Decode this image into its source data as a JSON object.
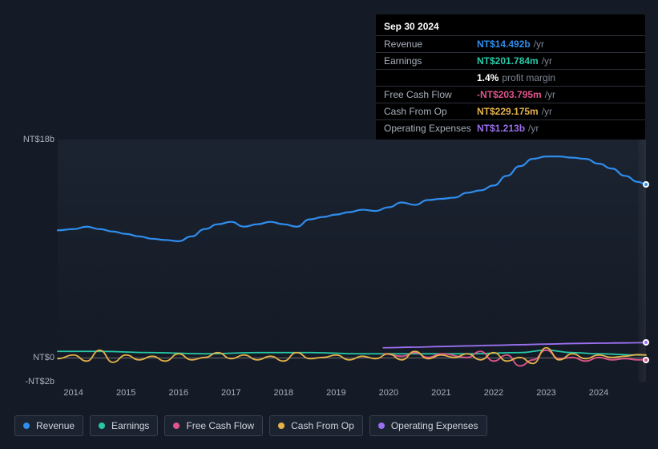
{
  "tooltip": {
    "date": "Sep 30 2024",
    "rows": [
      {
        "key": "revenue",
        "label": "Revenue",
        "value": "NT$14.492b",
        "unit": "/yr",
        "color": "#2f8ded"
      },
      {
        "key": "earnings",
        "label": "Earnings",
        "value": "NT$201.784m",
        "unit": "/yr",
        "color": "#27c8a7"
      },
      {
        "key": "margin",
        "label": "",
        "pct": "1.4%",
        "pm": "profit margin"
      },
      {
        "key": "fcf",
        "label": "Free Cash Flow",
        "value": "-NT$203.795m",
        "unit": "/yr",
        "color": "#e1548b"
      },
      {
        "key": "cfo",
        "label": "Cash From Op",
        "value": "NT$229.175m",
        "unit": "/yr",
        "color": "#e6b24a"
      },
      {
        "key": "opex",
        "label": "Operating Expenses",
        "value": "NT$1.213b",
        "unit": "/yr",
        "color": "#9a6ff0"
      }
    ]
  },
  "chart": {
    "type": "line",
    "background_color": "#151b26",
    "plot_bg_gradient": [
      "#202a3a",
      "#182030"
    ],
    "grid_color": "#2b3443",
    "text_color": "#a9b0bb",
    "zero_line_color": "rgba(255,255,255,0.35)",
    "label_fontsize": 11,
    "x": {
      "min": 2013.7,
      "max": 2024.9,
      "ticks": [
        2014,
        2015,
        2016,
        2017,
        2018,
        2019,
        2020,
        2021,
        2022,
        2023,
        2024
      ],
      "tick_labels": [
        "2014",
        "2015",
        "2016",
        "2017",
        "2018",
        "2019",
        "2020",
        "2021",
        "2022",
        "2023",
        "2024"
      ]
    },
    "y": {
      "min": -2,
      "max": 18,
      "ticks": [
        18,
        0,
        -2
      ],
      "tick_labels": [
        "NT$18b",
        "NT$0",
        "-NT$2b"
      ]
    },
    "future_band_start_x": 2024.75,
    "series": [
      {
        "key": "revenue",
        "label": "Revenue",
        "color": "#2f8ded",
        "line_width": 2.2,
        "marker_end": true,
        "points": [
          [
            2013.7,
            10.5
          ],
          [
            2014.0,
            10.6
          ],
          [
            2014.25,
            10.8
          ],
          [
            2014.5,
            10.6
          ],
          [
            2014.75,
            10.4
          ],
          [
            2015.0,
            10.2
          ],
          [
            2015.25,
            10.0
          ],
          [
            2015.5,
            9.8
          ],
          [
            2015.75,
            9.7
          ],
          [
            2016.0,
            9.6
          ],
          [
            2016.25,
            10.0
          ],
          [
            2016.5,
            10.6
          ],
          [
            2016.75,
            11.0
          ],
          [
            2017.0,
            11.2
          ],
          [
            2017.25,
            10.8
          ],
          [
            2017.5,
            11.0
          ],
          [
            2017.75,
            11.2
          ],
          [
            2018.0,
            11.0
          ],
          [
            2018.25,
            10.8
          ],
          [
            2018.5,
            11.4
          ],
          [
            2018.75,
            11.6
          ],
          [
            2019.0,
            11.8
          ],
          [
            2019.25,
            12.0
          ],
          [
            2019.5,
            12.2
          ],
          [
            2019.75,
            12.1
          ],
          [
            2020.0,
            12.4
          ],
          [
            2020.25,
            12.8
          ],
          [
            2020.5,
            12.6
          ],
          [
            2020.75,
            13.0
          ],
          [
            2021.0,
            13.1
          ],
          [
            2021.25,
            13.2
          ],
          [
            2021.5,
            13.6
          ],
          [
            2021.75,
            13.8
          ],
          [
            2022.0,
            14.2
          ],
          [
            2022.25,
            15.0
          ],
          [
            2022.5,
            15.8
          ],
          [
            2022.75,
            16.4
          ],
          [
            2023.0,
            16.6
          ],
          [
            2023.25,
            16.6
          ],
          [
            2023.5,
            16.5
          ],
          [
            2023.75,
            16.4
          ],
          [
            2024.0,
            16.0
          ],
          [
            2024.25,
            15.6
          ],
          [
            2024.5,
            15.0
          ],
          [
            2024.75,
            14.5
          ],
          [
            2024.9,
            14.3
          ]
        ]
      },
      {
        "key": "earnings",
        "label": "Earnings",
        "color": "#27c8a7",
        "line_width": 1.8,
        "points": [
          [
            2013.7,
            0.5
          ],
          [
            2014.5,
            0.5
          ],
          [
            2015.5,
            0.4
          ],
          [
            2016.5,
            0.3
          ],
          [
            2017.5,
            0.4
          ],
          [
            2018.5,
            0.4
          ],
          [
            2019.5,
            0.3
          ],
          [
            2020.5,
            0.3
          ],
          [
            2021.5,
            0.3
          ],
          [
            2022.5,
            0.4
          ],
          [
            2023.0,
            0.6
          ],
          [
            2023.5,
            0.4
          ],
          [
            2024.0,
            0.3
          ],
          [
            2024.75,
            0.2
          ],
          [
            2024.9,
            0.2
          ]
        ]
      },
      {
        "key": "fcf",
        "label": "Free Cash Flow",
        "color": "#e1548b",
        "line_width": 1.8,
        "marker_end": true,
        "start_x": 2019.9,
        "points": [
          [
            2019.9,
            0.3
          ],
          [
            2020.25,
            0.1
          ],
          [
            2020.5,
            0.4
          ],
          [
            2020.75,
            0.0
          ],
          [
            2021.0,
            0.3
          ],
          [
            2021.5,
            0.0
          ],
          [
            2021.75,
            0.5
          ],
          [
            2022.0,
            -0.3
          ],
          [
            2022.25,
            0.2
          ],
          [
            2022.5,
            -0.7
          ],
          [
            2022.75,
            -0.2
          ],
          [
            2023.0,
            0.6
          ],
          [
            2023.25,
            -0.1
          ],
          [
            2023.5,
            0.0
          ],
          [
            2023.75,
            -0.3
          ],
          [
            2024.0,
            0.0
          ],
          [
            2024.25,
            -0.2
          ],
          [
            2024.5,
            -0.1
          ],
          [
            2024.75,
            -0.2
          ],
          [
            2024.9,
            -0.2
          ]
        ]
      },
      {
        "key": "cfo",
        "label": "Cash From Op",
        "color": "#e6b24a",
        "line_width": 1.8,
        "points": [
          [
            2013.7,
            -0.1
          ],
          [
            2014.0,
            0.2
          ],
          [
            2014.25,
            -0.3
          ],
          [
            2014.5,
            0.6
          ],
          [
            2014.75,
            -0.4
          ],
          [
            2015.0,
            0.2
          ],
          [
            2015.25,
            -0.2
          ],
          [
            2015.5,
            0.1
          ],
          [
            2015.75,
            -0.3
          ],
          [
            2016.0,
            0.3
          ],
          [
            2016.25,
            -0.2
          ],
          [
            2016.5,
            0.0
          ],
          [
            2016.75,
            0.4
          ],
          [
            2017.0,
            -0.1
          ],
          [
            2017.25,
            0.2
          ],
          [
            2017.5,
            -0.2
          ],
          [
            2017.75,
            0.1
          ],
          [
            2018.0,
            -0.3
          ],
          [
            2018.25,
            0.4
          ],
          [
            2018.5,
            -0.1
          ],
          [
            2018.75,
            0.0
          ],
          [
            2019.0,
            0.2
          ],
          [
            2019.25,
            -0.2
          ],
          [
            2019.5,
            0.1
          ],
          [
            2019.75,
            -0.1
          ],
          [
            2020.0,
            0.3
          ],
          [
            2020.25,
            -0.2
          ],
          [
            2020.5,
            0.5
          ],
          [
            2020.75,
            -0.1
          ],
          [
            2021.0,
            0.2
          ],
          [
            2021.25,
            0.0
          ],
          [
            2021.5,
            0.3
          ],
          [
            2021.75,
            -0.2
          ],
          [
            2022.0,
            0.4
          ],
          [
            2022.25,
            -0.3
          ],
          [
            2022.5,
            0.0
          ],
          [
            2022.75,
            -0.5
          ],
          [
            2023.0,
            0.8
          ],
          [
            2023.25,
            -0.2
          ],
          [
            2023.5,
            0.3
          ],
          [
            2023.75,
            -0.1
          ],
          [
            2024.0,
            0.2
          ],
          [
            2024.25,
            0.0
          ],
          [
            2024.5,
            0.1
          ],
          [
            2024.75,
            0.23
          ],
          [
            2024.9,
            0.2
          ]
        ]
      },
      {
        "key": "opex",
        "label": "Operating Expenses",
        "color": "#9a6ff0",
        "line_width": 1.8,
        "marker_end": true,
        "start_x": 2019.9,
        "points": [
          [
            2019.9,
            0.8
          ],
          [
            2020.5,
            0.85
          ],
          [
            2021.0,
            0.9
          ],
          [
            2021.5,
            0.95
          ],
          [
            2022.0,
            1.0
          ],
          [
            2022.5,
            1.05
          ],
          [
            2023.0,
            1.1
          ],
          [
            2023.5,
            1.15
          ],
          [
            2024.0,
            1.18
          ],
          [
            2024.5,
            1.2
          ],
          [
            2024.9,
            1.22
          ]
        ]
      }
    ]
  },
  "legend": {
    "item_bg": "#1c2330",
    "item_border": "#384152",
    "items": [
      {
        "key": "revenue",
        "label": "Revenue",
        "color": "#2f8ded"
      },
      {
        "key": "earnings",
        "label": "Earnings",
        "color": "#27c8a7"
      },
      {
        "key": "fcf",
        "label": "Free Cash Flow",
        "color": "#e1548b"
      },
      {
        "key": "cfo",
        "label": "Cash From Op",
        "color": "#e6b24a"
      },
      {
        "key": "opex",
        "label": "Operating Expenses",
        "color": "#9a6ff0"
      }
    ]
  }
}
